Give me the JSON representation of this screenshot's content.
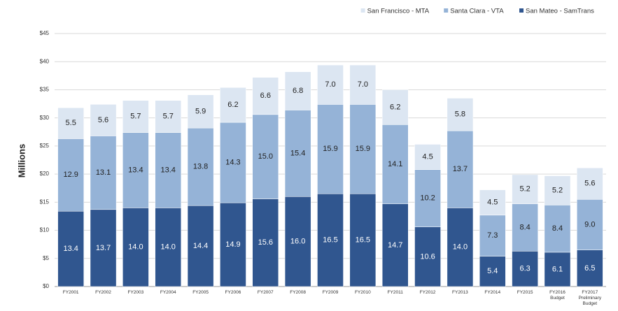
{
  "chart_data": {
    "type": "stacked_bar",
    "y_label": "Millions",
    "categories": [
      "FY2001",
      "FY2002",
      "FY2003",
      "FY2004",
      "FY2005",
      "FY2006",
      "FY2007",
      "FY2008",
      "FY2009",
      "FY2010",
      "FY2011",
      "FY2012",
      "FY2013",
      "FY2014",
      "FY2015",
      "FY2016 Budget",
      "FY2017 Preliminary Budget"
    ],
    "series": [
      {
        "name": "San Francisco - MTA",
        "color": "#dce6f2",
        "values": [
          5.5,
          5.6,
          5.7,
          5.7,
          5.9,
          6.2,
          6.6,
          6.8,
          7,
          7,
          6.2,
          4.5,
          5.8,
          4.5,
          5.2,
          5.2,
          5.6
        ],
        "value_labels": [
          "5.5",
          "5.6",
          "5.7",
          "5.7",
          "5.9",
          "6.2",
          "6.6",
          "6.8",
          "7.0",
          "7.0",
          "6.2",
          "4.5",
          "5.8",
          "4.5",
          "5.2",
          "5.2",
          "5.6"
        ]
      },
      {
        "name": "Santa Clara - VTA",
        "color": "#95b3d7",
        "values": [
          12.9,
          13.1,
          13.4,
          13.4,
          13.8,
          14.3,
          15,
          15.4,
          15.9,
          15.9,
          14.1,
          10.2,
          13.7,
          7.3,
          8.4,
          8.4,
          9
        ],
        "value_labels": [
          "12.9",
          "13.1",
          "13.4",
          "13.4",
          "13.8",
          "14.3",
          "15.0",
          "15.4",
          "15.9",
          "15.9",
          "14.1",
          "10.2",
          "13.7",
          "7.3",
          "8.4",
          "8.4",
          "9.0"
        ]
      },
      {
        "name": "San Mateo - SamTrans",
        "color": "#30568f",
        "values": [
          13.4,
          13.7,
          14,
          14,
          14.4,
          14.9,
          15.6,
          16,
          16.5,
          16.5,
          14.7,
          10.6,
          14,
          5.4,
          6.3,
          6.1,
          6.5
        ],
        "value_labels": [
          "13.4",
          "13.7",
          "14.0",
          "14.0",
          "14.4",
          "14.9",
          "15.6",
          "16.0",
          "16.5",
          "16.5",
          "14.7",
          "10.6",
          "14.0",
          "5.4",
          "6.3",
          "6.1",
          "6.5"
        ]
      }
    ],
    "ylim": [
      0,
      45
    ],
    "yticks": [
      {
        "value": 0,
        "label": "$0"
      },
      {
        "value": 5,
        "label": "$5"
      },
      {
        "value": 10,
        "label": "$10"
      },
      {
        "value": 15,
        "label": "$15"
      },
      {
        "value": 20,
        "label": "$20"
      },
      {
        "value": 25,
        "label": "$25"
      },
      {
        "value": 30,
        "label": "$30"
      },
      {
        "value": 35,
        "label": "$35"
      },
      {
        "value": 40,
        "label": "$40"
      },
      {
        "value": 45,
        "label": "$45"
      }
    ],
    "grid": true,
    "legend": "top-right"
  }
}
